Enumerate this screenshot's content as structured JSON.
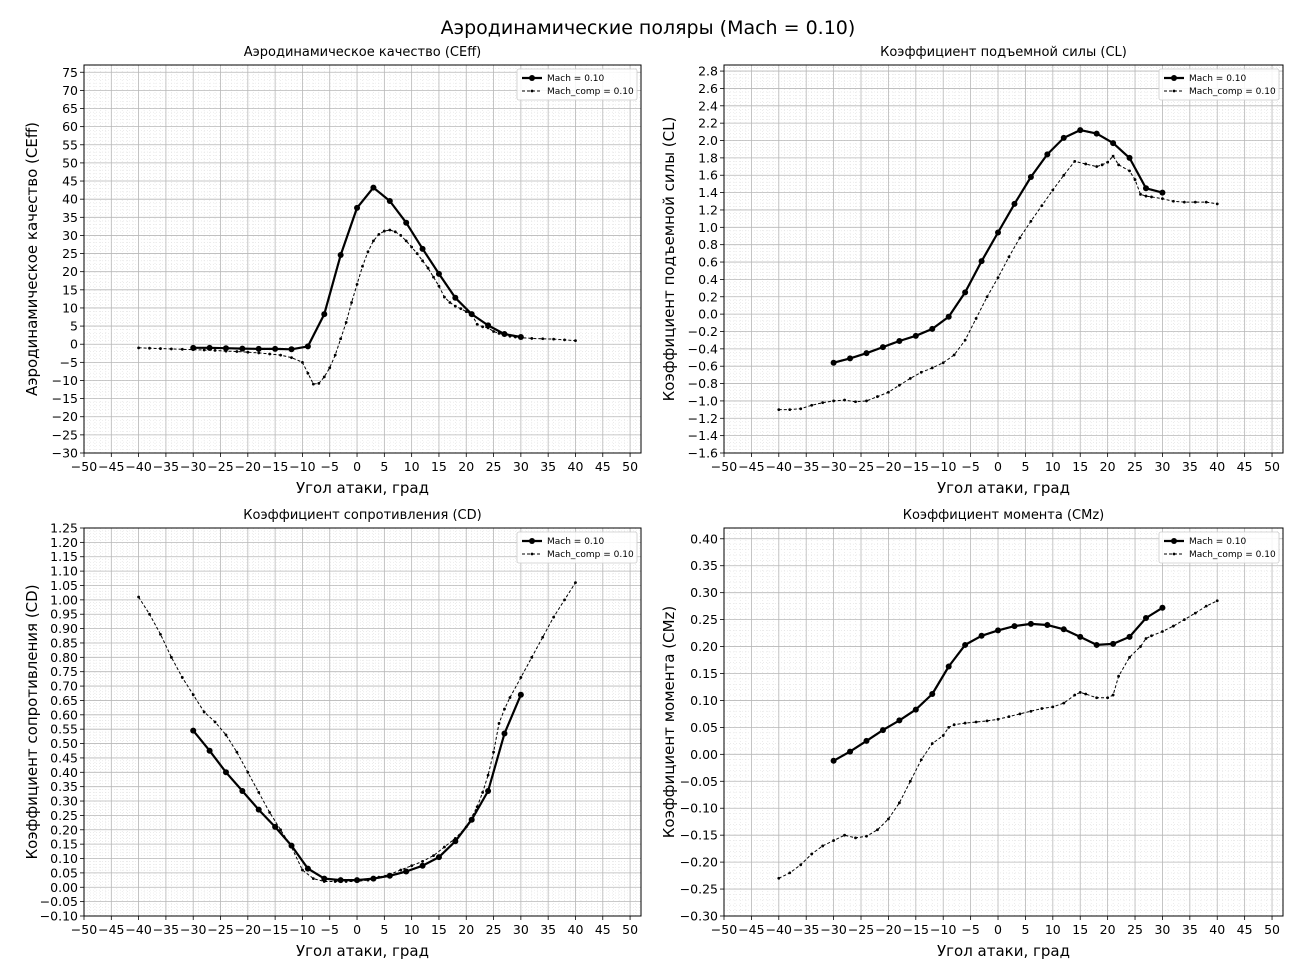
{
  "figure_title": "Аэродинамические поляры (Mach = 0.10)",
  "chart_data": [
    {
      "type": "line",
      "title": "Аэродинамическое качество (CEff)",
      "xlabel": "Угол атаки, град",
      "ylabel": "Аэродинамическое качество (CEff)",
      "xlim": [
        -50,
        52
      ],
      "ylim": [
        -30,
        77
      ],
      "xticks": [
        -50,
        -45,
        -40,
        -35,
        -30,
        -25,
        -20,
        -15,
        -10,
        -5,
        0,
        5,
        10,
        15,
        20,
        25,
        30,
        35,
        40,
        45,
        50
      ],
      "yticks": [
        -30,
        -25,
        -20,
        -15,
        -10,
        -5,
        0,
        5,
        10,
        15,
        20,
        25,
        30,
        35,
        40,
        45,
        50,
        55,
        60,
        65,
        70,
        75
      ],
      "tick_decimals": 0,
      "grid": true,
      "legend_position": "top-right",
      "series": [
        {
          "name": "Mach = 0.10",
          "style": "solid-markers",
          "x": [
            -30,
            -27,
            -24,
            -21,
            -18,
            -15,
            -12,
            -9,
            -6,
            -3,
            0,
            3,
            6,
            9,
            12,
            15,
            18,
            21,
            24,
            27,
            30
          ],
          "y": [
            -1.0,
            -1.0,
            -1.1,
            -1.2,
            -1.3,
            -1.3,
            -1.4,
            -0.6,
            8.3,
            24.6,
            37.6,
            43.2,
            39.5,
            33.5,
            26.3,
            19.4,
            12.8,
            8.3,
            5.2,
            2.8,
            2.0
          ]
        },
        {
          "name": "Mach_comp = 0.10",
          "style": "dashed-dots",
          "x": [
            -40,
            -38,
            -36,
            -34,
            -32,
            -30,
            -28,
            -26,
            -24,
            -22,
            -20,
            -18,
            -16,
            -14,
            -12,
            -10,
            -9,
            -8,
            -7,
            -6,
            -5,
            -4,
            -3,
            -2,
            -1,
            0,
            1,
            2,
            3,
            4,
            5,
            6,
            7,
            8,
            9,
            10,
            11,
            12,
            13,
            14,
            15,
            16,
            17,
            18,
            19,
            20,
            21,
            22,
            23,
            24,
            25,
            26,
            27,
            28,
            29,
            30,
            32,
            34,
            36,
            38,
            40
          ],
          "y": [
            -1.0,
            -1.1,
            -1.2,
            -1.3,
            -1.4,
            -1.5,
            -1.6,
            -1.7,
            -1.9,
            -2.0,
            -2.2,
            -2.4,
            -2.7,
            -3.0,
            -3.7,
            -5.0,
            -8.0,
            -11.0,
            -10.8,
            -9.0,
            -6.5,
            -3.0,
            1.5,
            6.0,
            11.5,
            16.5,
            21.5,
            25.5,
            28.5,
            30.3,
            31.2,
            31.5,
            31.0,
            30.0,
            28.5,
            26.8,
            25.0,
            23.0,
            21.0,
            18.5,
            16.0,
            13.0,
            11.5,
            10.5,
            9.8,
            9.0,
            8.2,
            5.5,
            4.8,
            4.5,
            3.5,
            3.0,
            2.5,
            2.2,
            2.0,
            1.8,
            1.6,
            1.5,
            1.4,
            1.2,
            1.0
          ]
        }
      ]
    },
    {
      "type": "line",
      "title": "Коэффициент подъемной силы (CL)",
      "xlabel": "Угол атаки, град",
      "ylabel": "Коэффициент подъемной силы (CL)",
      "xlim": [
        -50,
        52
      ],
      "ylim": [
        -1.6,
        2.87
      ],
      "xticks": [
        -50,
        -45,
        -40,
        -35,
        -30,
        -25,
        -20,
        -15,
        -10,
        -5,
        0,
        5,
        10,
        15,
        20,
        25,
        30,
        35,
        40,
        45,
        50
      ],
      "yticks": [
        -1.6,
        -1.4,
        -1.2,
        -1.0,
        -0.8,
        -0.6,
        -0.4,
        -0.2,
        0.0,
        0.2,
        0.4,
        0.6,
        0.8,
        1.0,
        1.2,
        1.4,
        1.6,
        1.8,
        2.0,
        2.2,
        2.4,
        2.6,
        2.8
      ],
      "tick_decimals": 1,
      "grid": true,
      "legend_position": "top-right",
      "series": [
        {
          "name": "Mach = 0.10",
          "style": "solid-markers",
          "x": [
            -30,
            -27,
            -24,
            -21,
            -18,
            -15,
            -12,
            -9,
            -6,
            -3,
            0,
            3,
            6,
            9,
            12,
            15,
            18,
            21,
            24,
            27,
            30
          ],
          "y": [
            -0.56,
            -0.51,
            -0.45,
            -0.38,
            -0.31,
            -0.25,
            -0.17,
            -0.03,
            0.25,
            0.61,
            0.94,
            1.27,
            1.58,
            1.84,
            2.03,
            2.12,
            2.08,
            1.97,
            1.8,
            1.45,
            1.4
          ]
        },
        {
          "name": "Mach_comp = 0.10",
          "style": "dashed-dots",
          "x": [
            -40,
            -38,
            -36,
            -34,
            -32,
            -30,
            -28,
            -26,
            -24,
            -22,
            -20,
            -18,
            -16,
            -14,
            -12,
            -10,
            -8,
            -6,
            -4,
            -2,
            0,
            2,
            4,
            6,
            8,
            10,
            12,
            14,
            16,
            18,
            19,
            20,
            21,
            22,
            24,
            25,
            26,
            27,
            28,
            30,
            32,
            34,
            36,
            38,
            40
          ],
          "y": [
            -1.1,
            -1.1,
            -1.09,
            -1.05,
            -1.02,
            -1.0,
            -0.99,
            -1.01,
            -1.0,
            -0.95,
            -0.9,
            -0.82,
            -0.74,
            -0.67,
            -0.62,
            -0.56,
            -0.47,
            -0.3,
            -0.05,
            0.2,
            0.42,
            0.66,
            0.88,
            1.07,
            1.25,
            1.43,
            1.6,
            1.76,
            1.73,
            1.7,
            1.72,
            1.75,
            1.82,
            1.72,
            1.65,
            1.55,
            1.38,
            1.36,
            1.35,
            1.33,
            1.3,
            1.29,
            1.29,
            1.29,
            1.27
          ]
        }
      ]
    },
    {
      "type": "line",
      "title": "Коэффициент сопротивления (CD)",
      "xlabel": "Угол атаки, град",
      "ylabel": "Коэффициент сопротивления (CD)",
      "xlim": [
        -50,
        52
      ],
      "ylim": [
        -0.1,
        1.25
      ],
      "xticks": [
        -50,
        -45,
        -40,
        -35,
        -30,
        -25,
        -20,
        -15,
        -10,
        -5,
        0,
        5,
        10,
        15,
        20,
        25,
        30,
        35,
        40,
        45,
        50
      ],
      "yticks": [
        -0.1,
        -0.05,
        0.0,
        0.05,
        0.1,
        0.15,
        0.2,
        0.25,
        0.3,
        0.35,
        0.4,
        0.45,
        0.5,
        0.55,
        0.6,
        0.65,
        0.7,
        0.75,
        0.8,
        0.85,
        0.9,
        0.95,
        1.0,
        1.05,
        1.1,
        1.15,
        1.2,
        1.25
      ],
      "tick_decimals": 2,
      "grid": true,
      "legend_position": "top-right",
      "series": [
        {
          "name": "Mach = 0.10",
          "style": "solid-markers",
          "x": [
            -30,
            -27,
            -24,
            -21,
            -18,
            -15,
            -12,
            -9,
            -6,
            -3,
            0,
            3,
            6,
            9,
            12,
            15,
            18,
            21,
            24,
            27,
            30
          ],
          "y": [
            0.545,
            0.475,
            0.4,
            0.335,
            0.27,
            0.21,
            0.145,
            0.065,
            0.03,
            0.025,
            0.025,
            0.03,
            0.04,
            0.055,
            0.075,
            0.105,
            0.16,
            0.235,
            0.335,
            0.535,
            0.67
          ]
        },
        {
          "name": "Mach_comp = 0.10",
          "style": "dashed-dots",
          "x": [
            -40,
            -38,
            -36,
            -34,
            -32,
            -30,
            -28,
            -26,
            -24,
            -22,
            -20,
            -18,
            -16,
            -14,
            -12,
            -10,
            -8,
            -6,
            -4,
            -2,
            0,
            2,
            4,
            6,
            8,
            10,
            12,
            14,
            16,
            18,
            20,
            22,
            23,
            24,
            25,
            26,
            27,
            28,
            30,
            32,
            34,
            36,
            38,
            40
          ],
          "y": [
            1.01,
            0.95,
            0.88,
            0.8,
            0.73,
            0.67,
            0.61,
            0.575,
            0.53,
            0.47,
            0.4,
            0.33,
            0.26,
            0.2,
            0.14,
            0.06,
            0.03,
            0.02,
            0.02,
            0.02,
            0.02,
            0.025,
            0.035,
            0.045,
            0.06,
            0.075,
            0.09,
            0.11,
            0.14,
            0.17,
            0.21,
            0.28,
            0.33,
            0.39,
            0.47,
            0.57,
            0.62,
            0.66,
            0.73,
            0.8,
            0.87,
            0.94,
            1.0,
            1.06
          ]
        }
      ]
    },
    {
      "type": "line",
      "title": "Коэффициент момента (CMz)",
      "xlabel": "Угол атаки, град",
      "ylabel": "Коэффициент момента (CMz)",
      "xlim": [
        -50,
        52
      ],
      "ylim": [
        -0.3,
        0.42
      ],
      "xticks": [
        -50,
        -45,
        -40,
        -35,
        -30,
        -25,
        -20,
        -15,
        -10,
        -5,
        0,
        5,
        10,
        15,
        20,
        25,
        30,
        35,
        40,
        45,
        50
      ],
      "yticks": [
        -0.3,
        -0.25,
        -0.2,
        -0.15,
        -0.1,
        -0.05,
        0.0,
        0.05,
        0.1,
        0.15,
        0.2,
        0.25,
        0.3,
        0.35,
        0.4
      ],
      "tick_decimals": 2,
      "grid": true,
      "legend_position": "top-right",
      "series": [
        {
          "name": "Mach = 0.10",
          "style": "solid-markers",
          "x": [
            -30,
            -27,
            -24,
            -21,
            -18,
            -15,
            -12,
            -9,
            -6,
            -3,
            0,
            3,
            6,
            9,
            12,
            15,
            18,
            21,
            24,
            27,
            30
          ],
          "y": [
            -0.012,
            0.005,
            0.025,
            0.045,
            0.063,
            0.083,
            0.112,
            0.163,
            0.203,
            0.22,
            0.23,
            0.238,
            0.242,
            0.24,
            0.232,
            0.218,
            0.203,
            0.205,
            0.218,
            0.253,
            0.272
          ]
        },
        {
          "name": "Mach_comp = 0.10",
          "style": "dashed-dots",
          "x": [
            -40,
            -38,
            -36,
            -34,
            -32,
            -30,
            -28,
            -26,
            -24,
            -22,
            -20,
            -18,
            -16,
            -14,
            -12,
            -10,
            -9,
            -8,
            -6,
            -4,
            -2,
            0,
            2,
            4,
            6,
            8,
            10,
            12,
            14,
            15,
            16,
            18,
            20,
            21,
            22,
            24,
            26,
            27,
            28,
            30,
            32,
            34,
            36,
            38,
            40
          ],
          "y": [
            -0.23,
            -0.22,
            -0.205,
            -0.185,
            -0.17,
            -0.16,
            -0.15,
            -0.155,
            -0.152,
            -0.14,
            -0.12,
            -0.09,
            -0.05,
            -0.01,
            0.02,
            0.035,
            0.05,
            0.055,
            0.058,
            0.06,
            0.062,
            0.065,
            0.07,
            0.075,
            0.08,
            0.085,
            0.088,
            0.095,
            0.11,
            0.115,
            0.112,
            0.105,
            0.105,
            0.11,
            0.145,
            0.18,
            0.2,
            0.215,
            0.22,
            0.228,
            0.238,
            0.25,
            0.262,
            0.275,
            0.285
          ]
        }
      ]
    }
  ]
}
